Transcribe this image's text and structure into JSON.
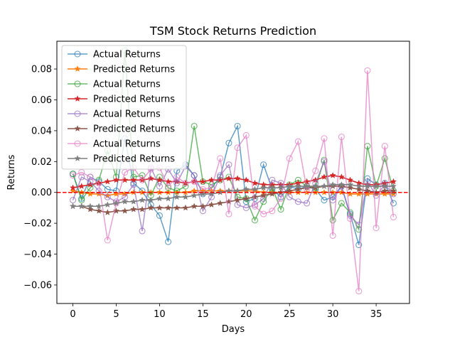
{
  "chart_data": {
    "type": "line",
    "title": "TSM Stock Returns Prediction",
    "xlabel": "Days",
    "ylabel": "Returns",
    "xlim": [
      -1.85,
      38.85
    ],
    "ylim": [
      -0.072,
      0.098
    ],
    "xticks": [
      0,
      5,
      10,
      15,
      20,
      25,
      30,
      35
    ],
    "yticks": [
      -0.06,
      -0.04,
      -0.02,
      0.0,
      0.02,
      0.04,
      0.06,
      0.08
    ],
    "ytick_labels": [
      "−0.06",
      "−0.04",
      "−0.02",
      "0.00",
      "0.02",
      "0.04",
      "0.06",
      "0.08"
    ],
    "grid": false,
    "legend_position": "upper-left",
    "reference_line": {
      "y": 0,
      "color": "#ff0000",
      "style": "dashed"
    },
    "series": [
      {
        "name": "Actual Returns",
        "kind": "actual",
        "color": "#1f77b4",
        "values": [
          0.012,
          -0.004,
          0.01,
          0.007,
          0.002,
          0.001,
          0.035,
          0.006,
          0.001,
          -0.008,
          -0.015,
          -0.032,
          0.014,
          0.018,
          0.011,
          -0.001,
          0.003,
          0.01,
          0.032,
          0.043,
          -0.006,
          -0.004,
          0.018,
          0.002,
          -0.003,
          0.004,
          0.002,
          0.004,
          0.002,
          -0.005,
          -0.003,
          0.004,
          -0.014,
          -0.034,
          0.009,
          0.005,
          0.006,
          -0.007
        ]
      },
      {
        "name": "Predicted Returns",
        "kind": "predicted",
        "color": "#ff7f0e",
        "values": [
          0.001,
          0.0,
          -0.001,
          -0.001,
          -0.002,
          -0.001,
          -0.001,
          0.0,
          0.0,
          0.0,
          0.0,
          0.0,
          0.0,
          0.0,
          0.001,
          0.001,
          0.001,
          0.001,
          0.001,
          0.001,
          0.001,
          0.001,
          0.0,
          0.0,
          0.0,
          0.0,
          0.0,
          0.0,
          0.0,
          0.0,
          0.0,
          0.0,
          -0.001,
          -0.001,
          -0.001,
          -0.001,
          -0.001,
          -0.001
        ]
      },
      {
        "name": "Actual Returns",
        "kind": "actual",
        "color": "#2ca02c",
        "values": [
          0.012,
          -0.005,
          0.003,
          0.008,
          0.027,
          0.01,
          0.092,
          0.01,
          0.011,
          -0.002,
          0.01,
          0.003,
          0.001,
          0.004,
          0.043,
          0.007,
          0.005,
          0.008,
          0.01,
          -0.003,
          -0.004,
          -0.018,
          -0.006,
          0.003,
          -0.011,
          0.005,
          0.008,
          0.004,
          0.003,
          0.021,
          -0.018,
          -0.007,
          -0.013,
          -0.024,
          0.03,
          0.004,
          0.022,
          0.001
        ]
      },
      {
        "name": "Predicted Returns",
        "kind": "predicted",
        "color": "#d62728",
        "values": [
          0.003,
          0.004,
          0.005,
          0.006,
          0.007,
          0.008,
          0.008,
          0.008,
          0.008,
          0.009,
          0.008,
          0.007,
          0.007,
          0.006,
          0.007,
          0.007,
          0.008,
          0.008,
          0.009,
          0.009,
          0.008,
          0.006,
          0.005,
          0.005,
          0.005,
          0.005,
          0.006,
          0.007,
          0.008,
          0.01,
          0.011,
          0.01,
          0.008,
          0.006,
          0.005,
          0.005,
          0.006,
          0.007
        ]
      },
      {
        "name": "Actual Returns",
        "kind": "actual",
        "color": "#9467bd",
        "values": [
          -0.005,
          0.01,
          0.007,
          0.001,
          -0.003,
          -0.006,
          -0.003,
          0.005,
          -0.025,
          0.016,
          0.004,
          0.015,
          0.006,
          0.017,
          0.011,
          -0.012,
          -0.003,
          0.011,
          0.018,
          -0.008,
          -0.01,
          -0.008,
          -0.004,
          0.008,
          0.006,
          -0.003,
          -0.006,
          -0.007,
          0.006,
          0.02,
          -0.005,
          0.004,
          -0.015,
          -0.021,
          0.007,
          -0.002,
          0.005,
          -0.001
        ]
      },
      {
        "name": "Predicted Returns",
        "kind": "predicted",
        "color": "#8c564b",
        "values": [
          -0.009,
          -0.009,
          -0.011,
          -0.012,
          -0.013,
          -0.012,
          -0.012,
          -0.011,
          -0.011,
          -0.01,
          -0.01,
          -0.01,
          -0.01,
          -0.01,
          -0.009,
          -0.009,
          -0.008,
          -0.007,
          -0.006,
          -0.005,
          -0.004,
          -0.003,
          -0.002,
          -0.001,
          0.0,
          0.001,
          0.002,
          0.003,
          0.003,
          0.004,
          0.004,
          0.004,
          0.003,
          0.002,
          0.001,
          0.0,
          0.001,
          0.001
        ]
      },
      {
        "name": "Actual Returns",
        "kind": "actual",
        "color": "#e377c2",
        "values": [
          0.011,
          0.013,
          0.01,
          0.006,
          -0.031,
          -0.007,
          0.013,
          0.016,
          0.008,
          0.015,
          0.016,
          0.004,
          0.01,
          0.006,
          0.007,
          0.002,
          0.003,
          0.022,
          -0.014,
          0.029,
          0.037,
          -0.009,
          -0.014,
          -0.012,
          -0.004,
          0.022,
          0.033,
          0.002,
          0.014,
          0.035,
          -0.028,
          0.036,
          -0.017,
          -0.064,
          0.079,
          -0.023,
          0.03,
          -0.016
        ]
      },
      {
        "name": "Predicted Returns",
        "kind": "predicted",
        "color": "#7f7f7f",
        "values": [
          -0.009,
          -0.009,
          -0.009,
          -0.009,
          -0.008,
          -0.007,
          -0.006,
          -0.006,
          -0.005,
          -0.005,
          -0.004,
          -0.004,
          -0.003,
          -0.003,
          -0.002,
          -0.001,
          -0.001,
          0.0,
          0.001,
          0.001,
          0.002,
          0.002,
          0.003,
          0.003,
          0.003,
          0.004,
          0.004,
          0.004,
          0.004,
          0.004,
          0.005,
          0.005,
          0.005,
          0.004,
          0.004,
          0.004,
          0.004,
          0.004
        ]
      }
    ]
  }
}
